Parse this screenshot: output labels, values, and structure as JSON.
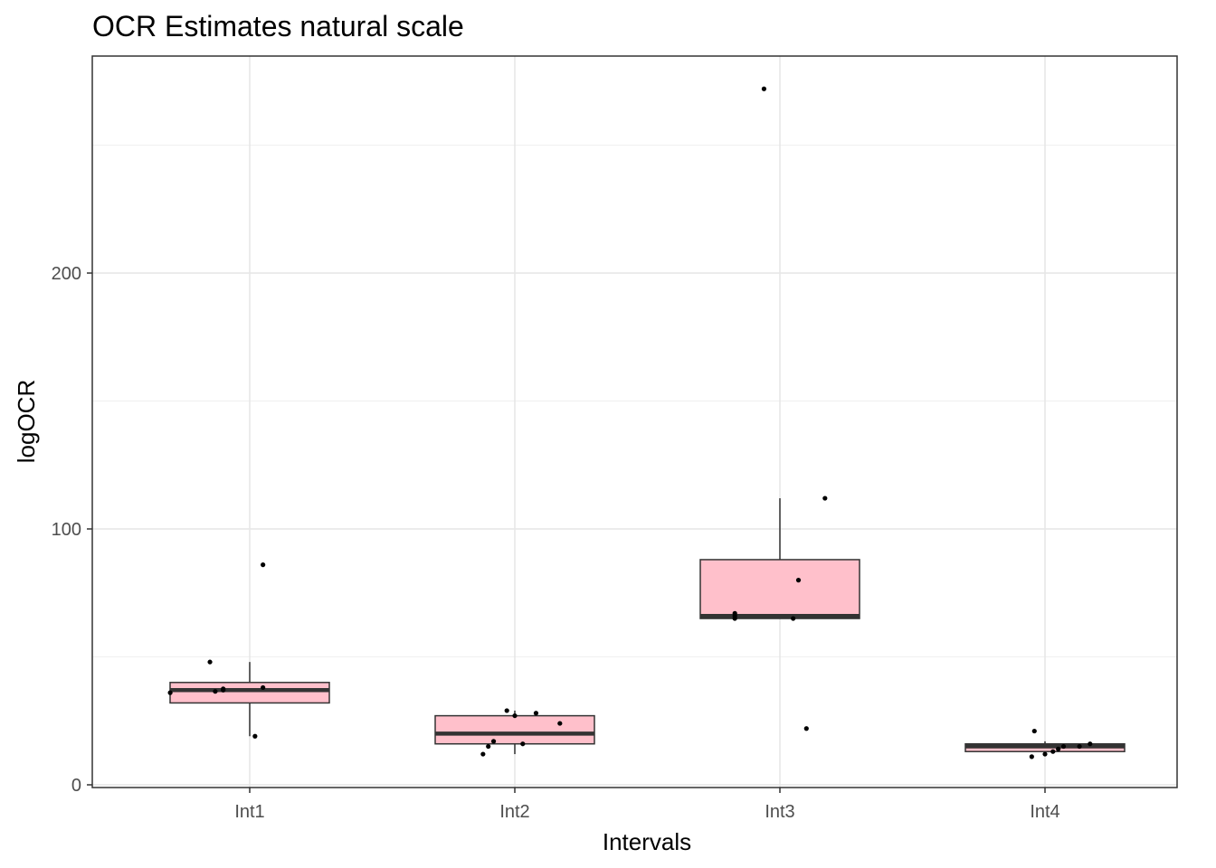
{
  "chart_data": {
    "type": "box",
    "title": "OCR Estimates natural scale",
    "xlabel": "Intervals",
    "ylabel": "logOCR",
    "ylim": [
      0,
      272
    ],
    "yticks": [
      0,
      100,
      200
    ],
    "y_minor_gridlines": [
      50,
      150,
      250
    ],
    "grid": true,
    "legend": "none",
    "box_fill": "#ffc0cb",
    "box_outline": "#333333",
    "point_color": "#000000",
    "categories": [
      "Int1",
      "Int2",
      "Int3",
      "Int4"
    ],
    "boxes": [
      {
        "category": "Int1",
        "whisker_low": 19,
        "q1": 32,
        "median": 37,
        "q3": 40,
        "whisker_high": 48,
        "points": [
          [
            -0.3,
            36
          ],
          [
            -0.1,
            37
          ],
          [
            -0.15,
            48
          ],
          [
            -0.13,
            36.5
          ],
          [
            0.05,
            38
          ],
          [
            0.05,
            86
          ],
          [
            0.02,
            19
          ],
          [
            -0.1,
            37.5
          ]
        ]
      },
      {
        "category": "Int2",
        "whisker_low": 12,
        "q1": 16,
        "median": 20,
        "q3": 27,
        "whisker_high": 29,
        "points": [
          [
            -0.12,
            12
          ],
          [
            -0.1,
            15
          ],
          [
            -0.08,
            17
          ],
          [
            -0.03,
            29
          ],
          [
            0.0,
            27
          ],
          [
            0.03,
            16
          ],
          [
            0.08,
            28
          ],
          [
            0.17,
            24
          ]
        ]
      },
      {
        "category": "Int3",
        "whisker_low": 65,
        "q1": 65,
        "median": 66,
        "q3": 88,
        "whisker_high": 112,
        "points": [
          [
            -0.17,
            65
          ],
          [
            -0.17,
            67
          ],
          [
            -0.06,
            272
          ],
          [
            0.05,
            65
          ],
          [
            0.07,
            80
          ],
          [
            0.1,
            22
          ],
          [
            0.17,
            112
          ],
          [
            -0.17,
            66
          ]
        ]
      },
      {
        "category": "Int4",
        "whisker_low": 12,
        "q1": 13,
        "median": 15,
        "q3": 16,
        "whisker_high": 17,
        "points": [
          [
            -0.05,
            11
          ],
          [
            -0.04,
            21
          ],
          [
            -0.0,
            12
          ],
          [
            0.03,
            13
          ],
          [
            0.05,
            14
          ],
          [
            0.07,
            15
          ],
          [
            0.13,
            15
          ],
          [
            0.17,
            16
          ]
        ]
      }
    ]
  }
}
